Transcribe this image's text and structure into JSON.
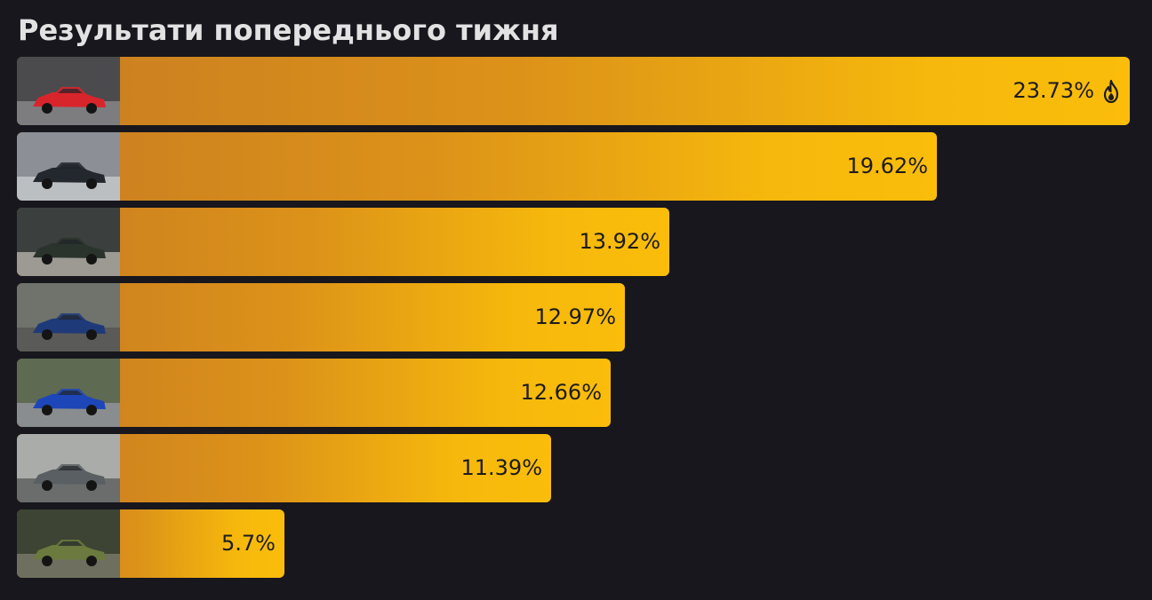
{
  "title": "Результати попереднього тижня",
  "chart_data": {
    "type": "bar",
    "orientation": "horizontal",
    "title": "Результати попереднього тижня",
    "values": [
      23.73,
      19.62,
      13.92,
      12.97,
      12.66,
      11.39,
      5.7
    ],
    "labels": [
      "23.73%",
      "19.62%",
      "13.92%",
      "12.97%",
      "12.66%",
      "11.39%",
      "5.7%"
    ],
    "thumbnails": [
      {
        "icon": "red-sports-car-photo",
        "car_color": "#d8252c",
        "bg": "#4b4b4e",
        "ground": "#7d7d80"
      },
      {
        "icon": "black-muscle-car-photo",
        "car_color": "#23272e",
        "bg": "#8c9096",
        "ground": "#bcbfc2"
      },
      {
        "icon": "dark-green-hatchback-photo",
        "car_color": "#2a342c",
        "bg": "#3b3f3e",
        "ground": "#9c9a92"
      },
      {
        "icon": "blue-sedan-photo",
        "car_color": "#1f3a78",
        "bg": "#6f736c",
        "ground": "#5a5a58"
      },
      {
        "icon": "blue-rally-car-photo",
        "car_color": "#1d46b8",
        "bg": "#5e6a52",
        "ground": "#8a8d90"
      },
      {
        "icon": "grey-sedan-photo",
        "car_color": "#5a5f63",
        "bg": "#a9aca8",
        "ground": "#6b6d6c"
      },
      {
        "icon": "olive-classic-car-photo",
        "car_color": "#6b7a3e",
        "bg": "#3d4433",
        "ground": "#6f6f5f"
      }
    ],
    "leader_marker": {
      "row": 0,
      "icon": "flame-icon"
    }
  },
  "colors": {
    "background": "#17171d",
    "title": "#e2e2e2",
    "bar_start": "#c97d22",
    "bar_end": "#fbbd0a",
    "label": "#1c1c1c"
  }
}
